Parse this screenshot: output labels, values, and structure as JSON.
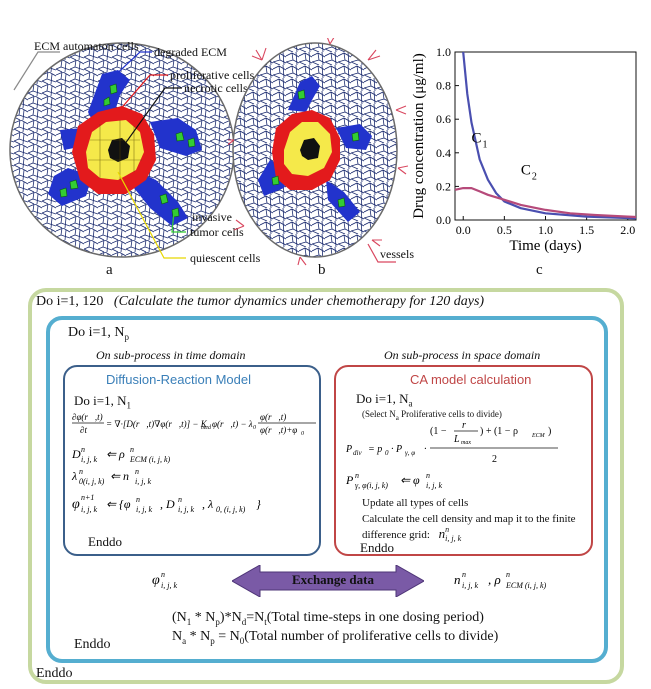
{
  "panel_a": {
    "letter": "a",
    "labels": {
      "ecm": "ECM automaton cells",
      "degraded": "degraded ECM",
      "proliferative": "proliferative cells",
      "necrotic": "necrotic cells",
      "invasive": "invasive",
      "tumor_cells": "tumor cells",
      "quiescent": "quiescent cells"
    }
  },
  "panel_b": {
    "letter": "b",
    "vessels": "vessels"
  },
  "panel_c": {
    "letter": "c"
  },
  "chart_data": {
    "type": "line",
    "xlabel": "Time (days)",
    "ylabel": "Drug concentration (μg/ml)",
    "xlim": [
      -0.1,
      2.1
    ],
    "ylim": [
      0,
      1.0
    ],
    "xticks": [
      "0.0",
      "0.5",
      "1.0",
      "1.5",
      "2.0"
    ],
    "yticks": [
      "0.0",
      "0.2",
      "0.4",
      "0.6",
      "0.8",
      "1.0"
    ],
    "series": [
      {
        "name": "C1",
        "label_main": "C",
        "label_sub": "1",
        "color": "#4a4fb0",
        "x": [
          0.0,
          0.05,
          0.1,
          0.2,
          0.3,
          0.4,
          0.5,
          0.7,
          1.0,
          1.5,
          2.0,
          2.1
        ],
        "y": [
          1.0,
          0.75,
          0.58,
          0.36,
          0.24,
          0.16,
          0.11,
          0.07,
          0.04,
          0.02,
          0.012,
          0.01
        ]
      },
      {
        "name": "C2",
        "label_main": "C",
        "label_sub": "2",
        "color": "#b64a7a",
        "x": [
          -0.1,
          0.0,
          0.1,
          0.2,
          0.3,
          0.5,
          0.7,
          1.0,
          1.3,
          1.6,
          2.0,
          2.1
        ],
        "y": [
          0.18,
          0.19,
          0.19,
          0.17,
          0.15,
          0.12,
          0.09,
          0.06,
          0.04,
          0.03,
          0.02,
          0.018
        ]
      }
    ]
  },
  "flow": {
    "outer_do": "Do i=1, 120",
    "outer_note": "(Calculate the tumor dynamics under chemotherapy for 120 days)",
    "inner_do_main": "Do  i=1, N",
    "inner_do_sub": "p",
    "time_title": "On sub-process in time domain",
    "space_title": "On sub-process in space domain",
    "left_box": {
      "title": "Diffusion-Reaction Model",
      "do_main": "Do  i=1, N",
      "do_sub": "1",
      "enddo": "Enddo"
    },
    "right_box": {
      "title": "CA model calculation",
      "do_main": "Do  i=1, N",
      "do_sub": "a",
      "select_note_a": "(Select N",
      "select_note_sub": "a",
      "select_note_b": " Proliferative cells to divide)",
      "update": "Update all types of cells",
      "calc_line1": "Calculate the cell density and map it to the finite",
      "calc_line2": "difference grid:",
      "enddo": "Enddo"
    },
    "exchange": "Exchange data",
    "eq1_a": "(N",
    "eq1_sub1": "1",
    "eq1_b": " * N",
    "eq1_sub2": "p",
    "eq1_c": ")*N",
    "eq1_sub3": "d",
    "eq1_d": "=N",
    "eq1_sub4": "t",
    "eq1_e": "(Total time-steps in one dosing period)",
    "eq2_a": "N",
    "eq2_sub1": "a",
    "eq2_b": " * N",
    "eq2_sub2": "p",
    "eq2_c": " = N",
    "eq2_sub3": "0",
    "eq2_d": "(Total number of proliferative cells to divide)",
    "inner_enddo": "Enddo",
    "outer_enddo": "Enddo"
  },
  "colors": {
    "outer_frame": "#c6d8a0",
    "inner_frame": "#55aed0",
    "left_box": "#3b5f8a",
    "right_box": "#c04646",
    "arrow": "#7a5aa6",
    "proliferative": "#e31a1c",
    "quiescent": "#f5e94a",
    "necrotic": "#111111",
    "degraded": "#2233cc",
    "invasive": "#33cc33"
  }
}
